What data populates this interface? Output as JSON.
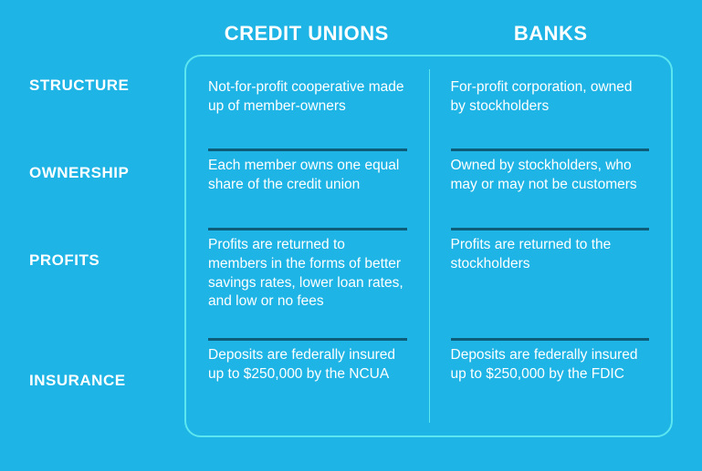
{
  "infographic": {
    "type": "table",
    "background_color": "#1eb4e6",
    "box_border_color": "#5be6f0",
    "divider_color": "#5be6f0",
    "hr_color": "#0d5c7a",
    "text_color": "#ffffff",
    "header_fontsize": 22,
    "rowlabel_fontsize": 17,
    "cell_fontsize": 15.5,
    "columns": [
      "CREDIT UNIONS",
      "BANKS"
    ],
    "rows": [
      {
        "label": "STRUCTURE",
        "credit_unions": "Not-for-profit cooperative made up of member-owners",
        "banks": "For-profit corporation, owned by stockholders"
      },
      {
        "label": "OWNERSHIP",
        "credit_unions": "Each member owns one equal share of the credit union",
        "banks": "Owned by stockholders, who may or may not be customers"
      },
      {
        "label": "PROFITS",
        "credit_unions": "Profits are returned to members in the forms of better savings rates, lower loan rates, and low or no fees",
        "banks": "Profits are returned to the stockholders"
      },
      {
        "label": "INSURANCE",
        "credit_unions": "Deposits are federally insured up to $250,000 by the NCUA",
        "banks": "Deposits are federally insured up to $250,000 by the FDIC"
      }
    ]
  }
}
